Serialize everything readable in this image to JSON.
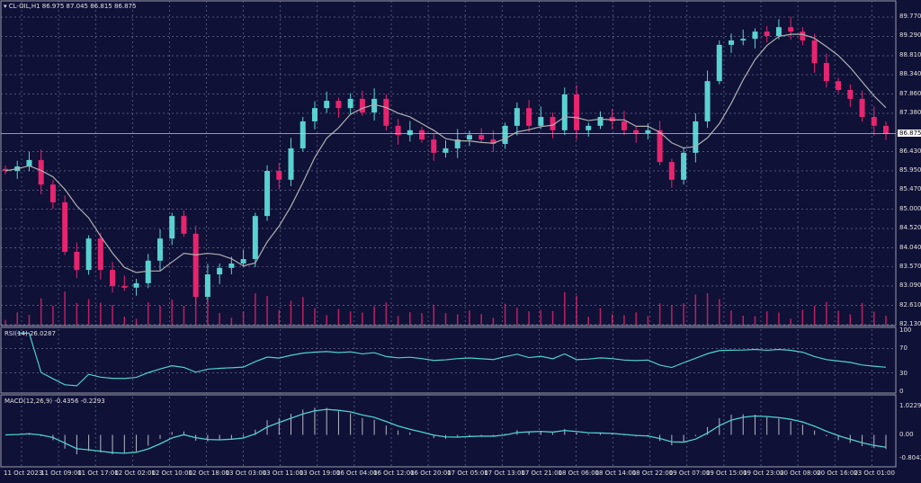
{
  "header": {
    "symbol": "CL-OIL,H1",
    "ohlc": "86.975 87.045 86.815 86.875"
  },
  "price_axis": {
    "ticks": [
      "89.770",
      "89.290",
      "88.810",
      "88.340",
      "87.860",
      "87.380",
      "86.430",
      "85.950",
      "85.470",
      "85.000",
      "84.520",
      "84.040",
      "83.570",
      "83.090",
      "82.610",
      "82.130"
    ],
    "current": "86.875",
    "range": [
      82.13,
      89.77
    ]
  },
  "rsi": {
    "label": "RSI(14) 26.0287",
    "ticks": [
      "100",
      "70",
      "30",
      "0"
    ]
  },
  "macd": {
    "label": "MACD(12,26,9) -0.4356 -0.2293",
    "ticks": [
      "1.0229",
      "0.00",
      "-0.8043"
    ]
  },
  "time_axis": [
    "11 Oct 2023",
    "11 Oct 09:00",
    "11 Oct 17:00",
    "12 Oct 02:00",
    "12 Oct 10:00",
    "12 Oct 18:00",
    "13 Oct 03:00",
    "13 Oct 11:00",
    "13 Oct 19:00",
    "16 Oct 04:00",
    "16 Oct 12:00",
    "16 Oct 20:00",
    "17 Oct 05:00",
    "17 Oct 13:00",
    "17 Oct 21:00",
    "18 Oct 06:00",
    "18 Oct 14:00",
    "18 Oct 22:00",
    "19 Oct 07:00",
    "19 Oct 15:00",
    "19 Oct 23:00",
    "20 Oct 08:00",
    "20 Oct 16:00",
    "23 Oct 01:00"
  ],
  "colors": {
    "background": "#0f1137",
    "bull": "#5ad1d1",
    "bear": "#e8246e",
    "ma": "#b0b0b0",
    "grid": "#6b6f8f",
    "rsi": "#4fd0cf"
  },
  "closes": [
    85.95,
    86.06,
    86.22,
    85.61,
    85.17,
    83.94,
    83.49,
    84.27,
    83.49,
    83.09,
    83.05,
    83.16,
    83.72,
    84.27,
    84.83,
    84.39,
    82.82,
    83.38,
    83.54,
    83.65,
    83.76,
    84.83,
    85.95,
    85.73,
    86.51,
    87.18,
    87.51,
    87.69,
    87.51,
    87.74,
    87.4,
    87.74,
    87.07,
    86.84,
    86.96,
    86.73,
    86.4,
    86.51,
    86.73,
    86.84,
    86.73,
    86.62,
    87.07,
    87.51,
    87.07,
    87.29,
    86.96,
    87.85,
    86.96,
    87.07,
    87.29,
    87.18,
    86.96,
    86.89,
    86.96,
    86.17,
    85.73,
    86.4,
    87.18,
    88.18,
    89.08,
    89.19,
    89.23,
    89.41,
    89.3,
    89.52,
    89.41,
    89.19,
    88.63,
    88.18,
    87.96,
    87.74,
    87.29,
    87.07,
    86.875
  ]
}
